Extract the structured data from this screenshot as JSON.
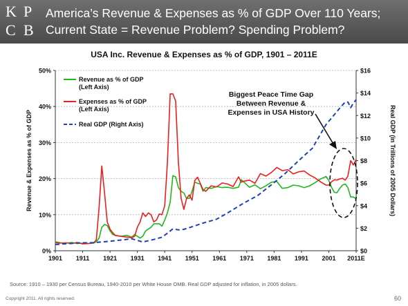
{
  "header": {
    "logo_letters": [
      "K",
      "P",
      "C",
      "B"
    ],
    "title_line1": "America’s Revenue & Expenses as % of GDP Over 110 Years;",
    "title_line2": "Current State = Revenue Problem? Spending Problem?"
  },
  "footer": {
    "source": "Source: 1910 – 1930 per Census Bureau, 1940-2010 per White House OMB. Real GDP adjusted for inflation, in 2005 dollars.",
    "copyright": "Copyright 2011. All rights reserved.",
    "page_number": "60"
  },
  "colors": {
    "revenue": "#1db81d",
    "expenses": "#ee1c1c",
    "gdp": "#1f3fb5",
    "header_bg": "#5a5a5a"
  },
  "chart_data": {
    "type": "line",
    "title": "USA Inc. Revenue & Expenses as % of GDP, 1901 – 2011E",
    "ylabel_left": "Revenue & Expenses as % of GDP",
    "ylabel_right": "Real GDP (in Trillions of 2005 Dollars)",
    "ylim_left": [
      0,
      50
    ],
    "ylim_right": [
      0,
      16
    ],
    "xlim": [
      1901,
      2011
    ],
    "x_ticks": [
      1901,
      1911,
      1921,
      1931,
      1941,
      1951,
      1961,
      1971,
      1981,
      1991,
      2001,
      2011
    ],
    "x_tick_labels": [
      "1901",
      "1911",
      "1921",
      "1931",
      "1941",
      "1951",
      "1961",
      "1971",
      "1981",
      "1991",
      "2001",
      "2011E"
    ],
    "y_left_ticks": [
      0,
      10,
      20,
      30,
      40,
      50
    ],
    "y_left_tick_labels": [
      "0%",
      "10%",
      "20%",
      "30%",
      "40%",
      "50%"
    ],
    "y_right_ticks": [
      0,
      2,
      4,
      6,
      8,
      10,
      12,
      14,
      16
    ],
    "y_right_tick_labels": [
      "$0",
      "$2",
      "$4",
      "$6",
      "$8",
      "$10",
      "$12",
      "$14",
      "$16"
    ],
    "grid": true,
    "legend_position": "top-left",
    "annotation": {
      "lines": [
        "Biggest Peace Time Gap",
        "Between Revenue &",
        "Expenses in USA History"
      ]
    },
    "series": [
      {
        "name": "Revenue as % of GDP",
        "name_line2": "(Left Axis)",
        "axis": "left",
        "style": "solid",
        "x": [
          1901,
          1903,
          1905,
          1907,
          1909,
          1911,
          1913,
          1915,
          1916,
          1917,
          1918,
          1919,
          1920,
          1921,
          1922,
          1923,
          1925,
          1927,
          1929,
          1930,
          1931,
          1932,
          1933,
          1934,
          1935,
          1936,
          1937,
          1938,
          1939,
          1940,
          1941,
          1942,
          1943,
          1944,
          1945,
          1946,
          1947,
          1948,
          1949,
          1950,
          1951,
          1952,
          1953,
          1954,
          1955,
          1956,
          1958,
          1960,
          1962,
          1964,
          1966,
          1968,
          1969,
          1970,
          1972,
          1974,
          1976,
          1978,
          1980,
          1982,
          1984,
          1986,
          1988,
          1990,
          1992,
          1994,
          1996,
          1998,
          2000,
          2001,
          2002,
          2003,
          2004,
          2005,
          2006,
          2007,
          2008,
          2009,
          2010,
          2011
        ],
        "values": [
          2.5,
          2.2,
          2.1,
          2.3,
          2.0,
          2.1,
          2.0,
          2.1,
          2.5,
          3.5,
          6.5,
          7.3,
          7.0,
          5.5,
          4.5,
          4.3,
          4.0,
          4.3,
          3.8,
          4.5,
          4.0,
          3.5,
          4.0,
          5.5,
          6.0,
          6.5,
          7.5,
          7.5,
          7.5,
          6.8,
          8.5,
          10.5,
          13.5,
          20.8,
          20.5,
          17.5,
          16.5,
          16.0,
          14.5,
          14.5,
          16.5,
          19.0,
          18.7,
          18.5,
          16.5,
          17.5,
          17.3,
          17.8,
          17.5,
          17.6,
          17.3,
          17.6,
          19.7,
          19.0,
          17.6,
          18.3,
          17.2,
          18.0,
          19.0,
          19.2,
          17.3,
          17.5,
          18.2,
          18.0,
          17.5,
          18.0,
          18.9,
          19.9,
          20.6,
          19.5,
          17.6,
          16.2,
          16.1,
          17.3,
          18.2,
          18.5,
          17.5,
          14.9,
          14.9,
          14.4
        ]
      },
      {
        "name": "Expenses as % of GDP",
        "name_line2": "(Left Axis)",
        "axis": "left",
        "style": "solid",
        "x": [
          1901,
          1903,
          1905,
          1907,
          1909,
          1911,
          1913,
          1915,
          1916,
          1917,
          1918,
          1919,
          1920,
          1921,
          1922,
          1923,
          1925,
          1927,
          1929,
          1930,
          1931,
          1932,
          1933,
          1934,
          1935,
          1936,
          1937,
          1938,
          1939,
          1940,
          1941,
          1942,
          1943,
          1944,
          1945,
          1946,
          1947,
          1948,
          1949,
          1950,
          1951,
          1952,
          1953,
          1954,
          1955,
          1956,
          1958,
          1960,
          1962,
          1964,
          1966,
          1968,
          1969,
          1970,
          1972,
          1974,
          1976,
          1978,
          1980,
          1982,
          1984,
          1986,
          1988,
          1990,
          1992,
          1994,
          1996,
          1998,
          2000,
          2001,
          2002,
          2003,
          2004,
          2005,
          2006,
          2007,
          2008,
          2009,
          2010,
          2011
        ],
        "values": [
          2.2,
          2.1,
          2.2,
          2.0,
          2.3,
          1.9,
          2.0,
          2.2,
          3.0,
          12.0,
          23.5,
          16.0,
          8.0,
          6.0,
          5.0,
          4.2,
          4.0,
          3.8,
          3.6,
          4.0,
          6.5,
          8.0,
          10.5,
          9.5,
          10.5,
          10.0,
          8.0,
          8.5,
          10.2,
          10.0,
          12.5,
          24.5,
          43.5,
          43.5,
          41.5,
          24.5,
          14.5,
          11.5,
          14.5,
          15.5,
          14.0,
          19.5,
          20.4,
          18.7,
          17.0,
          16.5,
          18.0,
          17.7,
          18.8,
          18.5,
          17.8,
          20.5,
          19.0,
          19.3,
          19.6,
          18.7,
          21.4,
          20.7,
          21.7,
          23.1,
          22.2,
          22.5,
          21.3,
          21.9,
          22.1,
          21.0,
          20.2,
          19.1,
          18.2,
          18.2,
          19.1,
          19.7,
          19.6,
          19.9,
          20.1,
          19.6,
          20.7,
          25.0,
          23.8,
          25.3
        ]
      },
      {
        "name": "Real GDP (Right Axis)",
        "axis": "right",
        "style": "dashed",
        "x": [
          1901,
          1905,
          1910,
          1915,
          1920,
          1925,
          1929,
          1933,
          1937,
          1940,
          1942,
          1944,
          1946,
          1948,
          1950,
          1955,
          1960,
          1965,
          1970,
          1975,
          1980,
          1985,
          1990,
          1995,
          2000,
          2005,
          2007,
          2008,
          2009,
          2010,
          2011
        ],
        "values": [
          0.55,
          0.62,
          0.7,
          0.72,
          0.82,
          0.95,
          1.06,
          0.78,
          1.0,
          1.2,
          1.55,
          1.95,
          1.85,
          1.9,
          2.05,
          2.45,
          2.8,
          3.5,
          4.25,
          4.9,
          5.85,
          6.85,
          8.0,
          9.1,
          11.2,
          12.65,
          13.2,
          13.2,
          12.7,
          13.1,
          13.4
        ]
      }
    ]
  }
}
